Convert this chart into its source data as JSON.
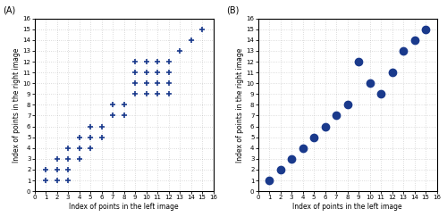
{
  "panel_A_points": [
    [
      1,
      1
    ],
    [
      2,
      1
    ],
    [
      3,
      1
    ],
    [
      1,
      2
    ],
    [
      2,
      2
    ],
    [
      3,
      2
    ],
    [
      2,
      3
    ],
    [
      3,
      3
    ],
    [
      4,
      3
    ],
    [
      3,
      4
    ],
    [
      4,
      4
    ],
    [
      5,
      4
    ],
    [
      4,
      5
    ],
    [
      5,
      5
    ],
    [
      6,
      5
    ],
    [
      5,
      6
    ],
    [
      6,
      6
    ],
    [
      7,
      7
    ],
    [
      8,
      7
    ],
    [
      7,
      8
    ],
    [
      8,
      8
    ],
    [
      9,
      9
    ],
    [
      10,
      9
    ],
    [
      11,
      9
    ],
    [
      12,
      9
    ],
    [
      9,
      10
    ],
    [
      10,
      10
    ],
    [
      11,
      10
    ],
    [
      12,
      10
    ],
    [
      9,
      11
    ],
    [
      10,
      11
    ],
    [
      11,
      11
    ],
    [
      12,
      11
    ],
    [
      9,
      12
    ],
    [
      10,
      12
    ],
    [
      11,
      12
    ],
    [
      12,
      12
    ],
    [
      13,
      13
    ],
    [
      14,
      14
    ],
    [
      15,
      15
    ]
  ],
  "panel_B_points": [
    [
      1,
      1
    ],
    [
      2,
      2
    ],
    [
      3,
      3
    ],
    [
      4,
      4
    ],
    [
      5,
      5
    ],
    [
      6,
      6
    ],
    [
      7,
      7
    ],
    [
      8,
      8
    ],
    [
      9,
      12
    ],
    [
      10,
      10
    ],
    [
      11,
      9
    ],
    [
      12,
      11
    ],
    [
      13,
      13
    ],
    [
      14,
      14
    ],
    [
      15,
      15
    ]
  ],
  "dot_color": "#1a3a8c",
  "bg_color": "#ffffff",
  "grid_dot_color": "#999999",
  "xlim": [
    0,
    16
  ],
  "ylim": [
    0,
    16
  ],
  "xticks": [
    0,
    1,
    2,
    3,
    4,
    5,
    6,
    7,
    8,
    9,
    10,
    11,
    12,
    13,
    14,
    15,
    16
  ],
  "yticks": [
    0,
    1,
    2,
    3,
    4,
    5,
    6,
    7,
    8,
    9,
    10,
    11,
    12,
    13,
    14,
    15,
    16
  ],
  "xlabel": "Index of points in the left image",
  "ylabel": "Index of points in the right image",
  "label_A": "(A)",
  "label_B": "(B)",
  "marker_plus": "P",
  "marker_circle": "o",
  "markersize_plus": 5,
  "markersize_circle": 6,
  "markeredgewidth_plus": 1.2,
  "tick_labelsize": 5.0,
  "xlabel_fontsize": 5.5,
  "ylabel_fontsize": 5.5,
  "panel_label_fontsize": 7
}
